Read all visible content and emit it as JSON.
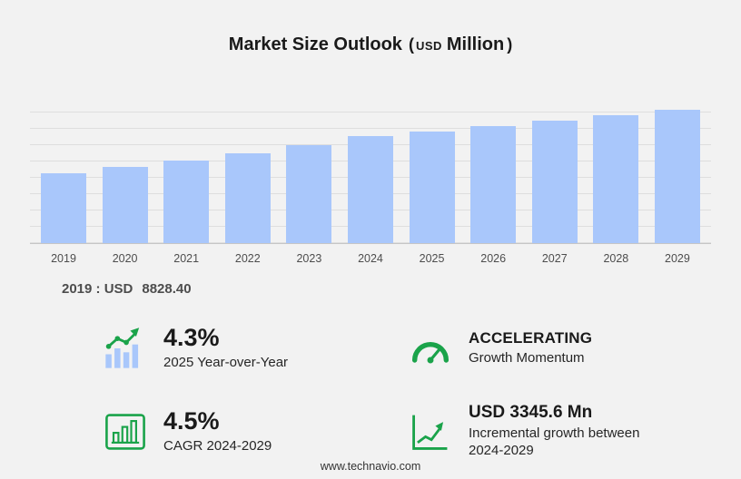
{
  "title": {
    "main": "Market Size Outlook",
    "open_paren": "(",
    "currency": "USD",
    "unit": "Million",
    "close_paren": ")"
  },
  "chart_data": {
    "type": "bar",
    "title": "Market Size Outlook (USD Million)",
    "categories": [
      "2019",
      "2020",
      "2021",
      "2022",
      "2023",
      "2024",
      "2025",
      "2026",
      "2027",
      "2028",
      "2029"
    ],
    "values": [
      8828.4,
      9624.0,
      10491.0,
      11436.0,
      12466.0,
      13590.3,
      14174.7,
      14819.5,
      15493.8,
      16198.7,
      16935.9
    ],
    "unit": "USD Million",
    "xlabel": "",
    "ylabel": "",
    "ylim": [
      0,
      17500
    ],
    "grid": true,
    "legend": "none",
    "bar_color": "#a9c7fb",
    "labeled_points": {
      "2019": 8828.4
    },
    "note": "Only the 2019 value (USD 8828.40) is labeled on screen; remaining values estimated from bar heights, 4.3% 2025 YoY, 4.5% CAGR 2024-2029 and USD 3345.6 Mn incremental growth 2024-2029."
  },
  "annotation": {
    "label": "2019 : USD",
    "value": "8828.40"
  },
  "stats": [
    {
      "id": "yoy",
      "icon": "bar-growth-icon",
      "value": "4.3%",
      "caption": "2025 Year-over-Year"
    },
    {
      "id": "momentum",
      "icon": "gauge-icon",
      "value": "ACCELERATING",
      "caption": "Growth Momentum"
    },
    {
      "id": "cagr",
      "icon": "cagr-chart-icon",
      "value": "4.5%",
      "caption": "CAGR 2024-2029"
    },
    {
      "id": "incremental",
      "icon": "incremental-growth-icon",
      "value": "USD 3345.6 Mn",
      "caption": "Incremental growth between 2024-2029"
    }
  ],
  "footer": {
    "website": "www.technavio.com"
  },
  "colors": {
    "background": "#f2f2f2",
    "bar_blue": "#a9c7fb",
    "accent_green": "#1aa34a",
    "gridline": "#dedede",
    "text_dark": "#1a1a1a",
    "text_gray": "#4d4d4d"
  }
}
